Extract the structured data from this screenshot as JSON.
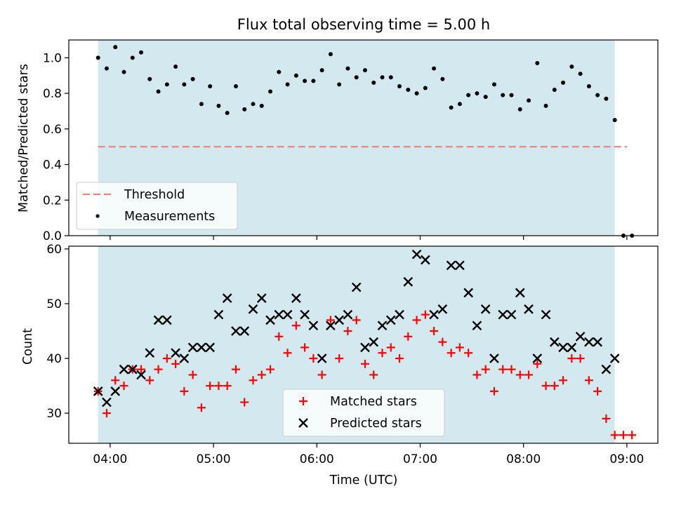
{
  "chart_data": [
    {
      "type": "scatter",
      "title": "Flux total observing time = 5.00 h",
      "xlabel": "",
      "ylabel": "Matched/Predicted stars",
      "ylim": [
        0.0,
        1.1
      ],
      "yticks": [
        0.0,
        0.2,
        0.4,
        0.6,
        0.8,
        1.0
      ],
      "ytick_labels": [
        "0.0",
        "0.2",
        "0.4",
        "0.6",
        "0.8",
        "1.0"
      ],
      "x_range_hours": [
        "03:36",
        "09:18"
      ],
      "observing_window": [
        "03:53",
        "08:53"
      ],
      "observing_window_color": "#d3e9ef",
      "threshold": {
        "name": "Threshold",
        "value": 0.5,
        "x": [
          "03:53",
          "09:00"
        ],
        "color": "#f08080"
      },
      "measurements_name": "Measurements",
      "measurements_color": "#000000",
      "x": [
        "03:53",
        "03:58",
        "04:03",
        "04:08",
        "04:13",
        "04:18",
        "04:23",
        "04:28",
        "04:33",
        "04:38",
        "04:43",
        "04:48",
        "04:53",
        "04:58",
        "05:03",
        "05:08",
        "05:13",
        "05:18",
        "05:23",
        "05:28",
        "05:33",
        "05:38",
        "05:43",
        "05:48",
        "05:53",
        "05:58",
        "06:03",
        "06:08",
        "06:13",
        "06:18",
        "06:23",
        "06:28",
        "06:33",
        "06:38",
        "06:43",
        "06:48",
        "06:53",
        "06:58",
        "07:03",
        "07:08",
        "07:13",
        "07:18",
        "07:23",
        "07:28",
        "07:33",
        "07:38",
        "07:43",
        "07:48",
        "07:53",
        "07:58",
        "08:03",
        "08:08",
        "08:13",
        "08:18",
        "08:23",
        "08:28",
        "08:33",
        "08:38",
        "08:43",
        "08:48",
        "08:53",
        "08:58",
        "09:03"
      ],
      "y": [
        1.0,
        0.94,
        1.06,
        0.92,
        1.0,
        1.03,
        0.88,
        0.81,
        0.85,
        0.95,
        0.85,
        0.88,
        0.74,
        0.84,
        0.73,
        0.69,
        0.84,
        0.71,
        0.74,
        0.73,
        0.81,
        0.92,
        0.85,
        0.9,
        0.87,
        0.87,
        0.93,
        1.02,
        0.85,
        0.94,
        0.89,
        0.93,
        0.86,
        0.89,
        0.89,
        0.84,
        0.82,
        0.8,
        0.83,
        0.94,
        0.88,
        0.72,
        0.74,
        0.79,
        0.8,
        0.78,
        0.85,
        0.79,
        0.79,
        0.71,
        0.76,
        0.97,
        0.73,
        0.82,
        0.86,
        0.95,
        0.91,
        0.84,
        0.79,
        0.77,
        0.65,
        0.0,
        0.0
      ]
    },
    {
      "type": "scatter",
      "title": "",
      "xlabel": "Time (UTC)",
      "ylabel": "Count",
      "ylim": [
        24.5,
        60.5
      ],
      "yticks": [
        30,
        40,
        50,
        60
      ],
      "ytick_labels": [
        "30",
        "40",
        "50",
        "60"
      ],
      "xticks": [
        "04:00",
        "05:00",
        "06:00",
        "07:00",
        "08:00",
        "09:00"
      ],
      "x_range_hours": [
        "03:36",
        "09:18"
      ],
      "observing_window": [
        "03:53",
        "08:53"
      ],
      "observing_window_color": "#d3e9ef",
      "legend_position": "lower center",
      "series": [
        {
          "name": "Matched stars",
          "marker": "plus",
          "color": "#ff0000",
          "x": [
            "03:53",
            "03:58",
            "04:03",
            "04:08",
            "04:13",
            "04:18",
            "04:23",
            "04:28",
            "04:33",
            "04:38",
            "04:43",
            "04:48",
            "04:53",
            "04:58",
            "05:03",
            "05:08",
            "05:13",
            "05:18",
            "05:23",
            "05:28",
            "05:33",
            "05:38",
            "05:43",
            "05:48",
            "05:53",
            "05:58",
            "06:03",
            "06:08",
            "06:13",
            "06:18",
            "06:23",
            "06:28",
            "06:33",
            "06:38",
            "06:43",
            "06:48",
            "06:53",
            "06:58",
            "07:03",
            "07:08",
            "07:13",
            "07:18",
            "07:23",
            "07:28",
            "07:33",
            "07:38",
            "07:43",
            "07:48",
            "07:53",
            "07:58",
            "08:03",
            "08:08",
            "08:13",
            "08:18",
            "08:23",
            "08:28",
            "08:33",
            "08:38",
            "08:43",
            "08:48",
            "08:53",
            "08:58",
            "09:03"
          ],
          "y": [
            34,
            30,
            36,
            35,
            38,
            38,
            36,
            38,
            40,
            39,
            34,
            37,
            31,
            35,
            35,
            35,
            38,
            32,
            36,
            37,
            38,
            44,
            41,
            46,
            42,
            40,
            37,
            47,
            40,
            45,
            47,
            39,
            37,
            41,
            42,
            40,
            44,
            47,
            48,
            45,
            43,
            41,
            42,
            41,
            37,
            38,
            34,
            38,
            38,
            37,
            37,
            39,
            35,
            35,
            36,
            40,
            40,
            36,
            34,
            29,
            26,
            26,
            26
          ]
        },
        {
          "name": "Predicted stars",
          "marker": "x",
          "color": "#000000",
          "x": [
            "03:53",
            "03:58",
            "04:03",
            "04:08",
            "04:13",
            "04:18",
            "04:23",
            "04:28",
            "04:33",
            "04:38",
            "04:43",
            "04:48",
            "04:53",
            "04:58",
            "05:03",
            "05:08",
            "05:13",
            "05:18",
            "05:23",
            "05:28",
            "05:33",
            "05:38",
            "05:43",
            "05:48",
            "05:53",
            "05:58",
            "06:03",
            "06:08",
            "06:13",
            "06:18",
            "06:23",
            "06:28",
            "06:33",
            "06:38",
            "06:43",
            "06:48",
            "06:53",
            "06:58",
            "07:03",
            "07:08",
            "07:13",
            "07:18",
            "07:23",
            "07:28",
            "07:33",
            "07:38",
            "07:43",
            "07:48",
            "07:53",
            "07:58",
            "08:03",
            "08:08",
            "08:13",
            "08:18",
            "08:23",
            "08:28",
            "08:33",
            "08:38",
            "08:43",
            "08:48",
            "08:53"
          ],
          "y": [
            34,
            32,
            34,
            38,
            38,
            37,
            41,
            47,
            47,
            41,
            40,
            42,
            42,
            42,
            48,
            51,
            45,
            45,
            49,
            51,
            47,
            48,
            48,
            51,
            48,
            46,
            40,
            46,
            47,
            48,
            53,
            42,
            43,
            46,
            47,
            48,
            54,
            59,
            58,
            48,
            49,
            57,
            57,
            52,
            46,
            49,
            40,
            48,
            48,
            52,
            49,
            40,
            48,
            43,
            42,
            42,
            44,
            43,
            43,
            38,
            40
          ]
        }
      ]
    }
  ]
}
